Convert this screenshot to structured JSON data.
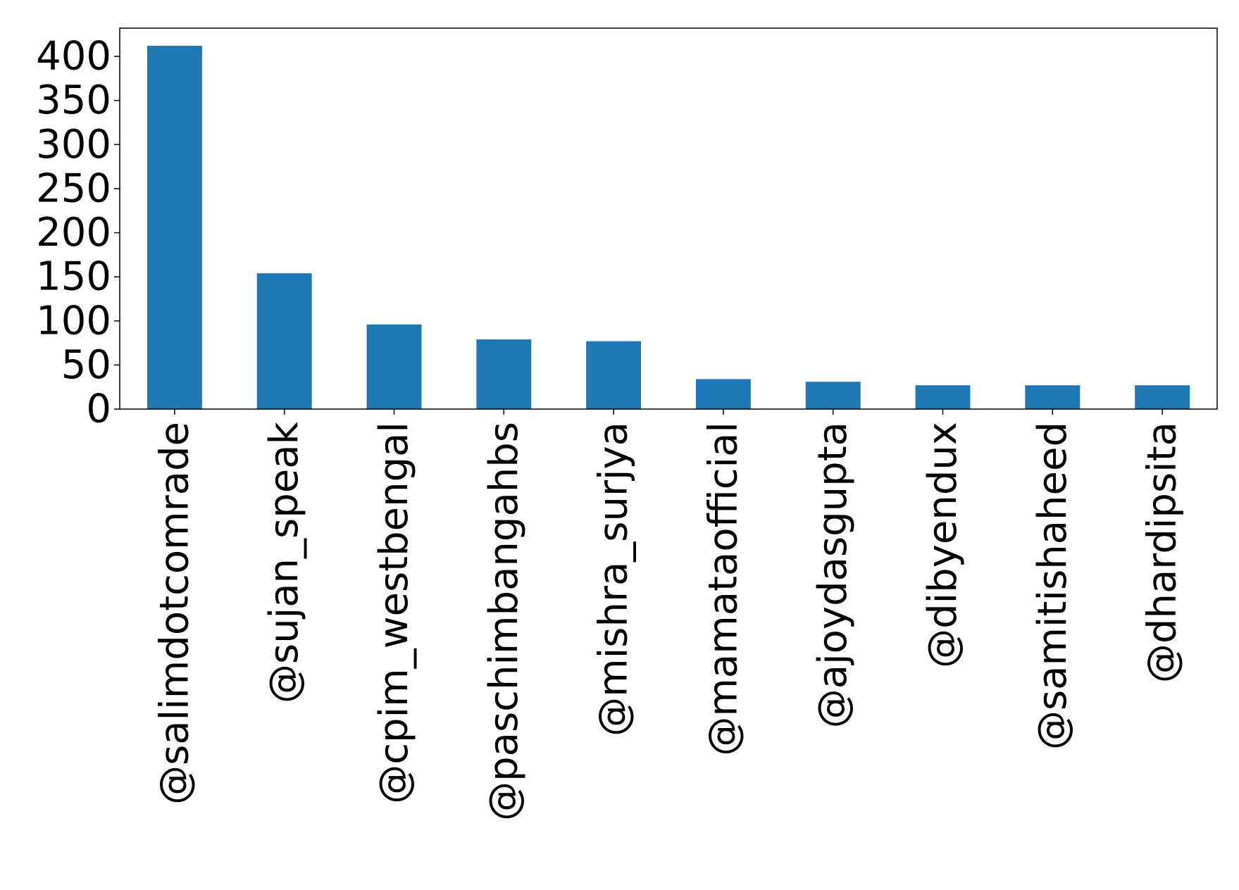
{
  "chart_data": {
    "type": "bar",
    "title": "",
    "xlabel": "",
    "ylabel": "",
    "categories": [
      "@salimdotcomrade",
      "@sujan_speak",
      "@cpim_westbengal",
      "@paschimbangahbs",
      "@mishra_surjya",
      "@mamataofficial",
      "@ajoydasgupta",
      "@dibyendux",
      "@samitishaheed",
      "@dhardipsita"
    ],
    "values": [
      412,
      154,
      96,
      79,
      77,
      34,
      31,
      27,
      27,
      27
    ],
    "ylim": [
      0,
      432
    ],
    "yticks": [
      0,
      50,
      100,
      150,
      200,
      250,
      300,
      350,
      400
    ],
    "grid": false,
    "legend": "none",
    "bar_color": "#1f77b4"
  }
}
